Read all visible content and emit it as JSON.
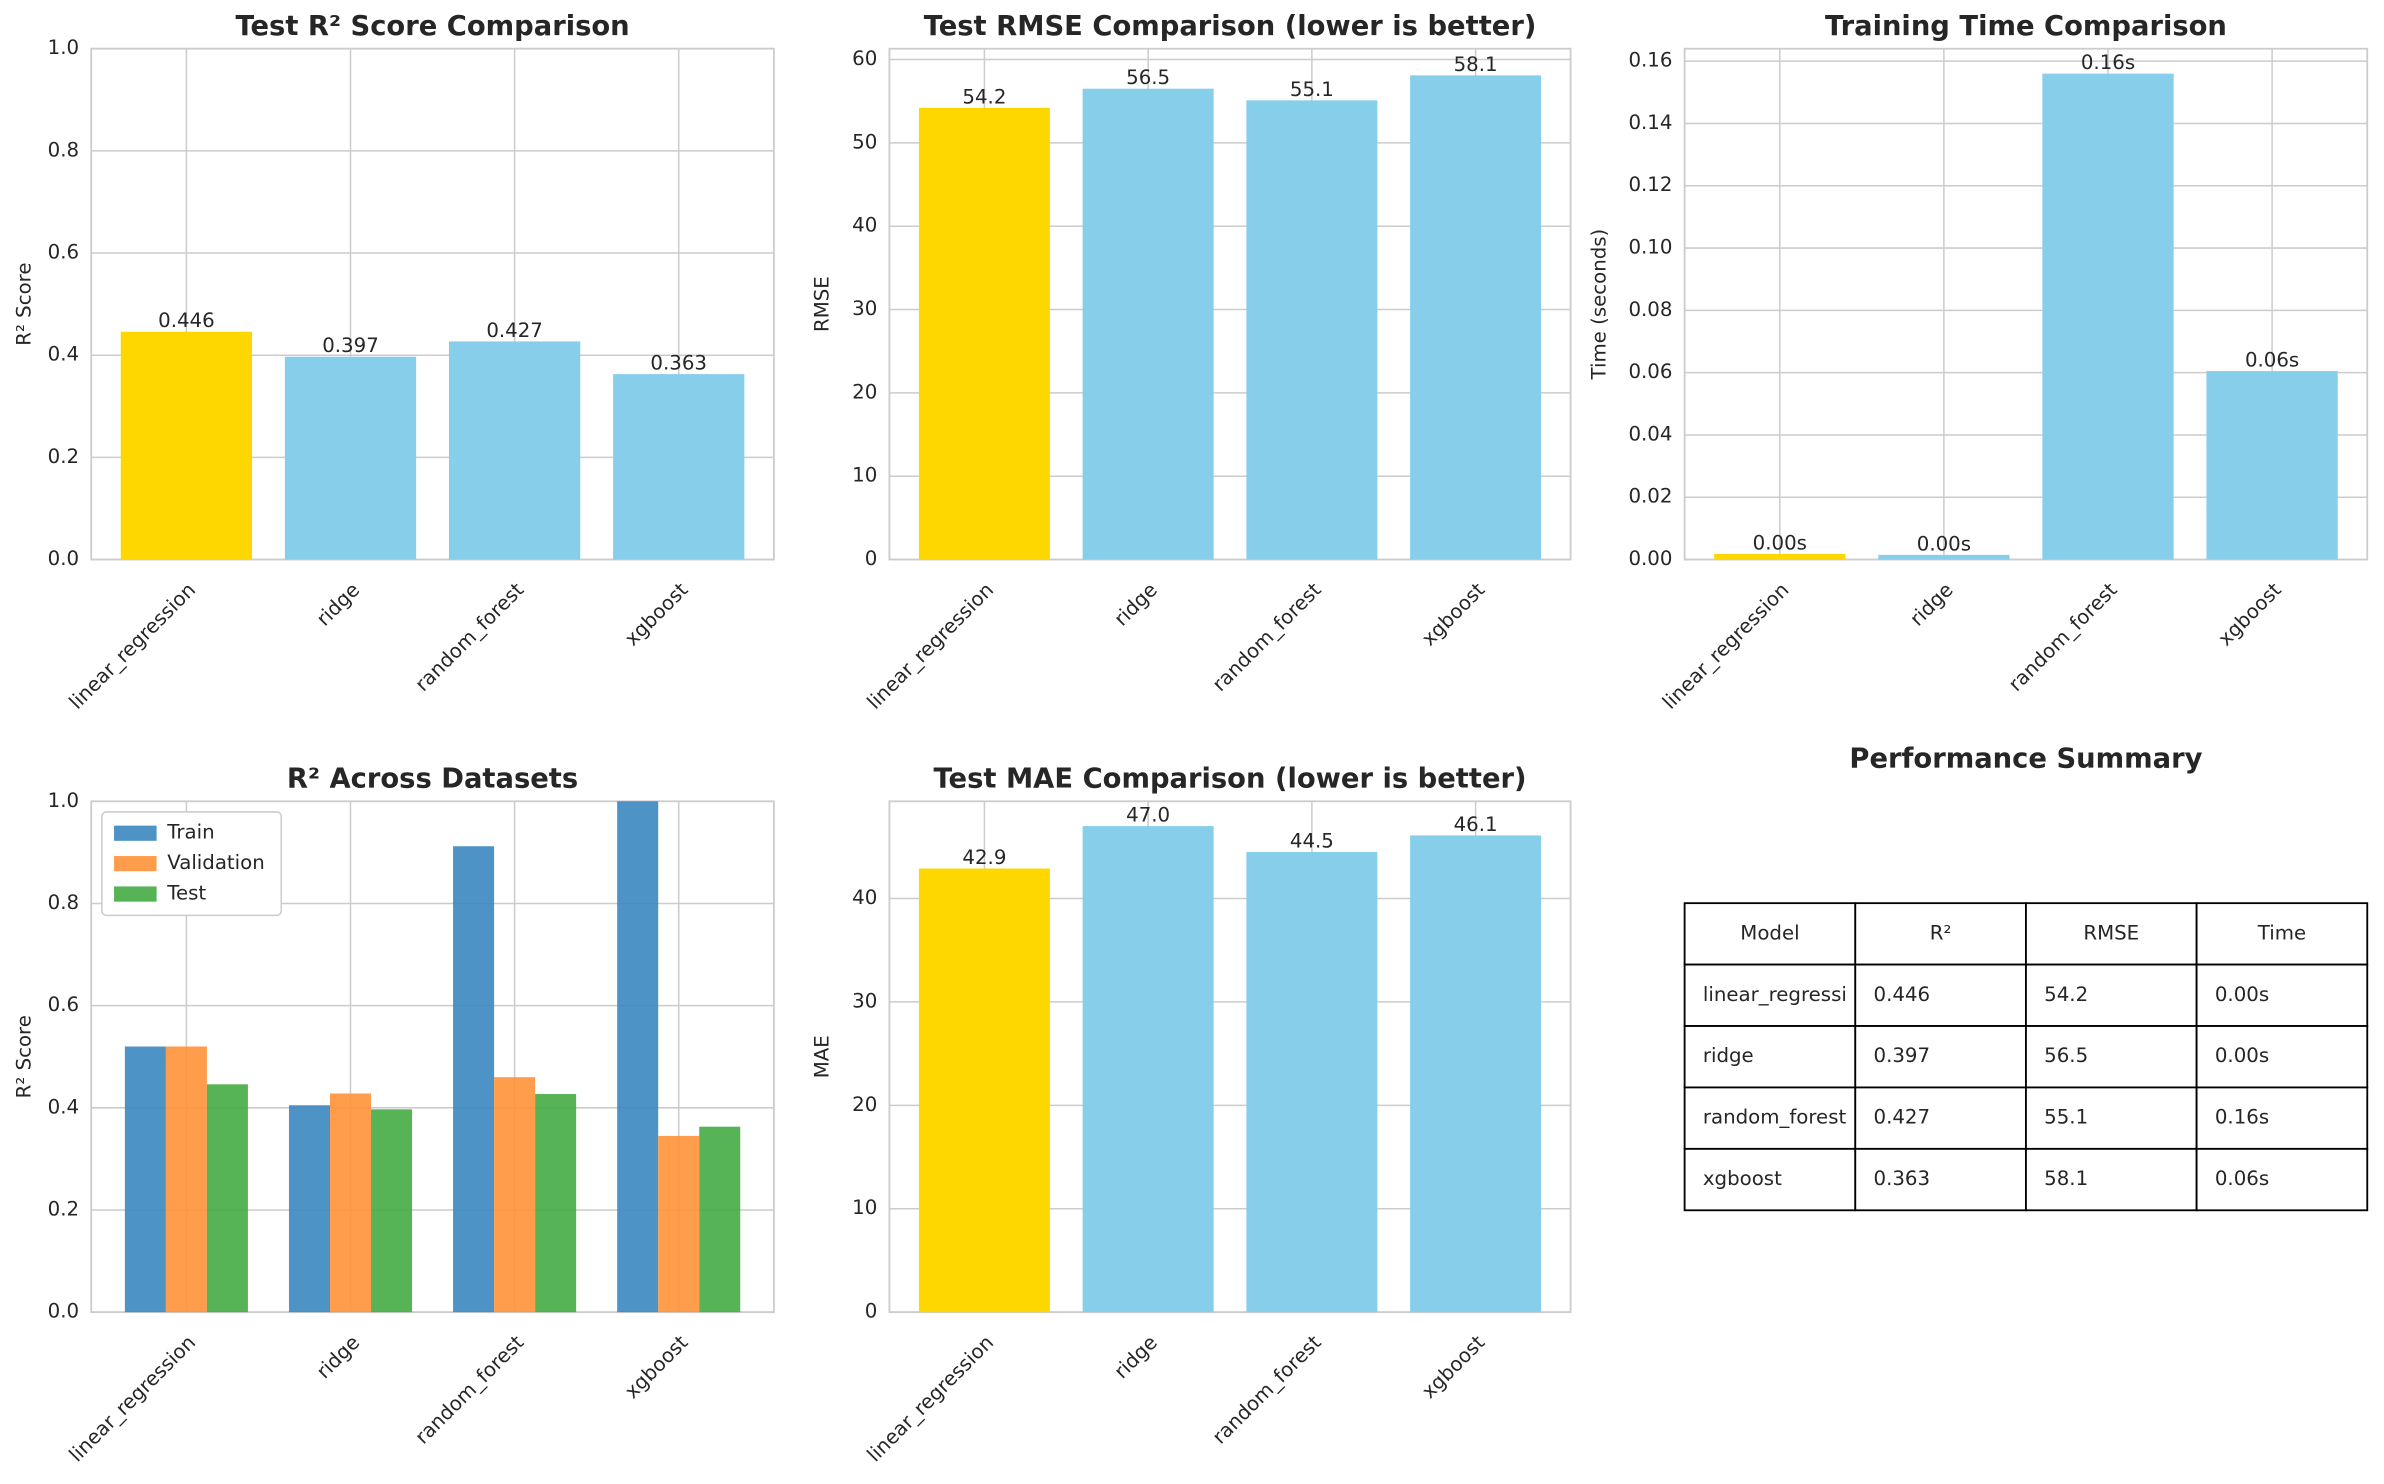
{
  "chart_data": [
    {
      "type": "bar",
      "title": "Test R² Score Comparison",
      "y_label": "R² Score",
      "categories": [
        "linear_regression",
        "ridge",
        "random_forest",
        "xgboost"
      ],
      "values": [
        0.446,
        0.397,
        0.427,
        0.363
      ],
      "colors": [
        "#ffd700",
        "#87ceeb",
        "#87ceeb",
        "#87ceeb"
      ],
      "ylim": [
        0,
        1
      ],
      "yticks": [
        {
          "value": 0,
          "label": "0.0"
        },
        0.2,
        0.4,
        0.6,
        0.8,
        {
          "value": 1,
          "label": "1.0"
        }
      ],
      "grid": true
    },
    {
      "type": "bar",
      "title": "Test RMSE Comparison (lower is better)",
      "y_label": "RMSE",
      "categories": [
        "linear_regression",
        "ridge",
        "random_forest",
        "xgboost"
      ],
      "values": [
        54.2,
        56.5,
        55.1,
        58.1
      ],
      "colors": [
        "#ffd700",
        "#87ceeb",
        "#87ceeb",
        "#87ceeb"
      ],
      "ylim": [
        0,
        61.3
      ],
      "yticks": [
        0,
        10,
        20,
        30,
        40,
        50,
        60
      ],
      "grid": true
    },
    {
      "type": "bar",
      "title": "Training Time Comparison",
      "y_label": "Time (seconds)",
      "categories": [
        "linear_regression",
        "ridge",
        "random_forest",
        "xgboost"
      ],
      "values": [
        0.0018,
        0.0015,
        0.156,
        0.0605
      ],
      "value_labels": [
        "0.00s",
        "0.00s",
        "0.16s",
        "0.06s"
      ],
      "colors": [
        "#ffd700",
        "#87ceeb",
        "#87ceeb",
        "#87ceeb"
      ],
      "ylim": [
        0,
        0.164
      ],
      "yticks": [
        {
          "value": 0,
          "label": "0.00"
        },
        {
          "value": 0.02,
          "label": "0.02"
        },
        {
          "value": 0.04,
          "label": "0.04"
        },
        {
          "value": 0.06,
          "label": "0.06"
        },
        {
          "value": 0.08,
          "label": "0.08"
        },
        {
          "value": 0.1,
          "label": "0.10"
        },
        {
          "value": 0.12,
          "label": "0.12"
        },
        {
          "value": 0.14,
          "label": "0.14"
        },
        {
          "value": 0.16,
          "label": "0.16"
        }
      ],
      "grid": true
    },
    {
      "type": "grouped_bar",
      "title": "R² Across Datasets",
      "y_label": "R² Score",
      "categories": [
        "linear_regression",
        "ridge",
        "random_forest",
        "xgboost"
      ],
      "series": [
        {
          "name": "Train",
          "color": "#3a87bf",
          "values": [
            0.52,
            0.405,
            0.912,
            1.0
          ]
        },
        {
          "name": "Validation",
          "color": "#ff9238",
          "values": [
            0.52,
            0.428,
            0.46,
            0.345
          ]
        },
        {
          "name": "Test",
          "color": "#44ac44",
          "values": [
            0.446,
            0.397,
            0.427,
            0.363
          ]
        }
      ],
      "ylim": [
        0,
        1
      ],
      "yticks": [
        {
          "value": 0,
          "label": "0.0"
        },
        0.2,
        0.4,
        0.6,
        0.8,
        {
          "value": 1,
          "label": "1.0"
        }
      ],
      "grid": true,
      "legend": "upper-left"
    },
    {
      "type": "bar",
      "title": "Test MAE Comparison (lower is better)",
      "y_label": "MAE",
      "categories": [
        "linear_regression",
        "ridge",
        "random_forest",
        "xgboost"
      ],
      "values": [
        42.9,
        47.0,
        44.5,
        46.1
      ],
      "value_labels": [
        "42.9",
        "47.0",
        "44.5",
        "46.1"
      ],
      "colors": [
        "#ffd700",
        "#87ceeb",
        "#87ceeb",
        "#87ceeb"
      ],
      "ylim": [
        0,
        49.4
      ],
      "yticks": [
        0,
        10,
        20,
        30,
        40
      ],
      "grid": true
    },
    {
      "type": "table",
      "title": "Performance Summary",
      "columns": [
        "Model",
        "R²",
        "RMSE",
        "Time"
      ],
      "rows": [
        [
          "linear_regressi",
          "0.446",
          "54.2",
          "0.00s"
        ],
        [
          "ridge",
          "0.397",
          "56.5",
          "0.00s"
        ],
        [
          "random_forest",
          "0.427",
          "55.1",
          "0.16s"
        ],
        [
          "xgboost",
          "0.363",
          "58.1",
          "0.06s"
        ]
      ]
    }
  ]
}
